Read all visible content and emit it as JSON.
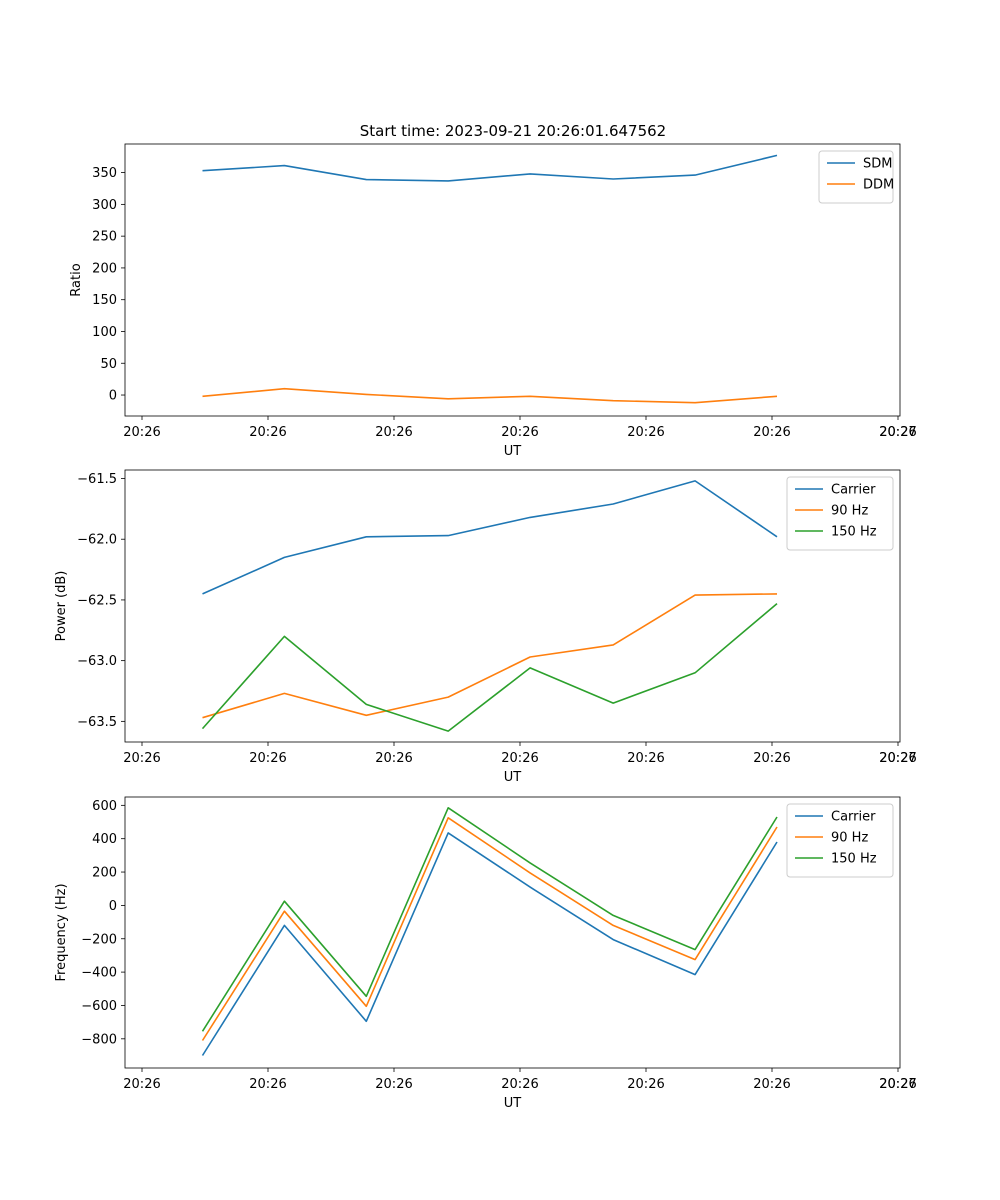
{
  "figure": {
    "title": "Start time: 2023-09-21 20:26:01.647562"
  },
  "colors": {
    "blue": "#1f77b4",
    "orange": "#ff7f0e",
    "green": "#2ca02c"
  },
  "chart_data": [
    {
      "type": "line",
      "title": "Start time: 2023-09-21 20:26:01.647562",
      "xlabel": "UT",
      "ylabel": "Ratio",
      "x_ticks": [
        "20:26",
        "20:26",
        "20:26",
        "20:26",
        "20:26",
        "20:26",
        "20:26"
      ],
      "x_tick_values": [
        0,
        1,
        2,
        3,
        4,
        5,
        6
      ],
      "x_last_tick": "20:27",
      "x_last_tick_value": 6.0,
      "xlim": [
        -0.13,
        6.0
      ],
      "ylim": [
        -33,
        395
      ],
      "y_ticks": [
        0,
        50,
        100,
        150,
        200,
        250,
        300,
        350
      ],
      "x": [
        0.48,
        1.13,
        1.78,
        2.43,
        3.08,
        3.74,
        4.39,
        5.04
      ],
      "legend": "top-right",
      "series": [
        {
          "name": "SDM",
          "color": "blue",
          "values": [
            353,
            361,
            339,
            337,
            348,
            340,
            346,
            377
          ]
        },
        {
          "name": "DDM",
          "color": "orange",
          "values": [
            -2,
            10,
            1,
            -6,
            -2,
            -9,
            -12,
            -2
          ]
        }
      ]
    },
    {
      "type": "line",
      "title": "",
      "xlabel": "UT",
      "ylabel": "Power (dB)",
      "x_ticks": [
        "20:26",
        "20:26",
        "20:26",
        "20:26",
        "20:26",
        "20:26",
        "20:26"
      ],
      "x_tick_values": [
        0,
        1,
        2,
        3,
        4,
        5,
        6
      ],
      "x_last_tick": "20:27",
      "x_last_tick_value": 6.0,
      "xlim": [
        -0.13,
        6.0
      ],
      "ylim": [
        -63.67,
        -61.43
      ],
      "y_ticks": [
        -63.5,
        -63.0,
        -62.5,
        -62.0,
        -61.5
      ],
      "y_tick_labels": [
        "−63.5",
        "−63.0",
        "−62.5",
        "−62.0",
        "−61.5"
      ],
      "x": [
        0.48,
        1.13,
        1.78,
        2.43,
        3.08,
        3.74,
        4.39,
        5.04
      ],
      "legend": "top-right",
      "series": [
        {
          "name": "Carrier",
          "color": "blue",
          "values": [
            -62.45,
            -62.15,
            -61.98,
            -61.97,
            -61.82,
            -61.71,
            -61.52,
            -61.98
          ]
        },
        {
          "name": "90 Hz",
          "color": "orange",
          "values": [
            -63.47,
            -63.27,
            -63.45,
            -63.3,
            -62.97,
            -62.87,
            -62.46,
            -62.45
          ]
        },
        {
          "name": "150 Hz",
          "color": "green",
          "values": [
            -63.56,
            -62.8,
            -63.36,
            -63.58,
            -63.06,
            -63.35,
            -63.1,
            -62.53
          ]
        }
      ]
    },
    {
      "type": "line",
      "title": "",
      "xlabel": "UT",
      "ylabel": "Frequency (Hz)",
      "x_ticks": [
        "20:26",
        "20:26",
        "20:26",
        "20:26",
        "20:26",
        "20:26",
        "20:26"
      ],
      "x_tick_values": [
        0,
        1,
        2,
        3,
        4,
        5,
        6
      ],
      "x_last_tick": "20:27",
      "x_last_tick_value": 6.0,
      "xlim": [
        -0.13,
        6.0
      ],
      "ylim": [
        -975,
        650
      ],
      "y_ticks": [
        -800,
        -600,
        -400,
        -200,
        0,
        200,
        400,
        600
      ],
      "y_tick_labels": [
        "−800",
        "−600",
        "−400",
        "−200",
        "0",
        "200",
        "400",
        "600"
      ],
      "x": [
        0.48,
        1.13,
        1.78,
        2.43,
        3.08,
        3.74,
        4.39,
        5.04
      ],
      "legend": "top-right",
      "series": [
        {
          "name": "Carrier",
          "color": "blue",
          "values": [
            -900,
            -120,
            -695,
            435,
            110,
            -205,
            -415,
            380
          ]
        },
        {
          "name": "90 Hz",
          "color": "orange",
          "values": [
            -810,
            -35,
            -605,
            525,
            195,
            -120,
            -325,
            470
          ]
        },
        {
          "name": "150 Hz",
          "color": "green",
          "values": [
            -755,
            25,
            -545,
            585,
            255,
            -60,
            -265,
            530
          ]
        }
      ]
    }
  ]
}
